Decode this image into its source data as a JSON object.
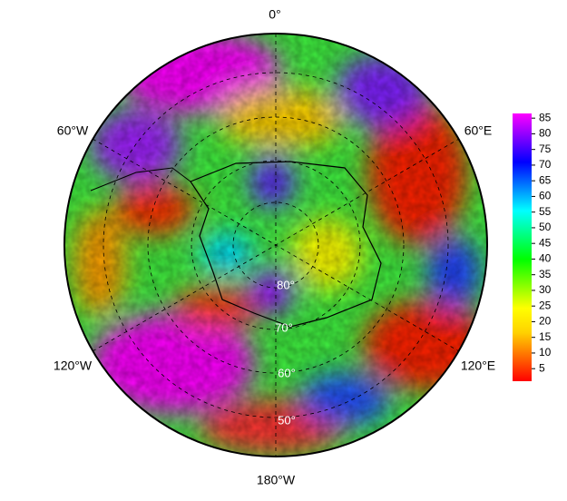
{
  "map": {
    "meridian_labels": [
      "0°",
      "60°W",
      "60°E",
      "120°W",
      "120°E",
      "180°W"
    ],
    "latitude_labels": [
      "80°",
      "70°",
      "60°",
      "50°"
    ]
  },
  "colorbar": {
    "range": [
      1,
      86.5
    ],
    "ticks": [
      5,
      10,
      15,
      20,
      25,
      30,
      35,
      40,
      45,
      50,
      55,
      60,
      65,
      70,
      75,
      80,
      85
    ],
    "colors": [
      "#ff0000",
      "#ff6a00",
      "#ffd200",
      "#ffff00",
      "#7fff00",
      "#00ff00",
      "#00ff7f",
      "#00ffff",
      "#007fff",
      "#0000ff",
      "#7f00ff",
      "#ff00ff"
    ]
  }
}
